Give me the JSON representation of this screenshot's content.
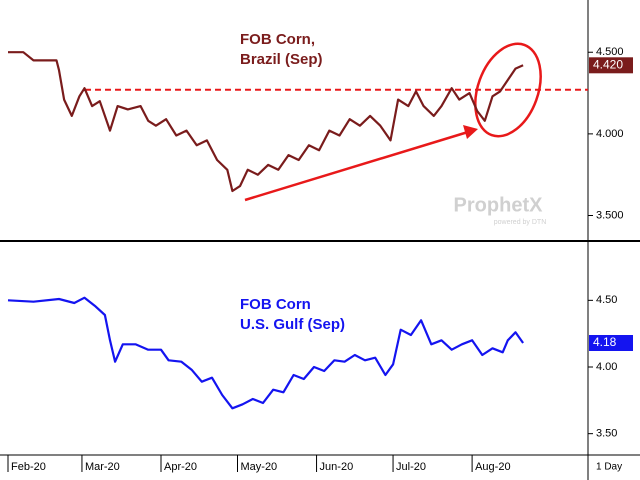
{
  "chart_data": [
    {
      "type": "line",
      "title": [
        "FOB Corn,",
        "Brazil (Sep)"
      ],
      "color": "#7a1c1c",
      "ylim": [
        3.35,
        4.82
      ],
      "yticks": [
        {
          "value": 4.5,
          "label": "4.500"
        },
        {
          "value": 4.0,
          "label": "4.000"
        },
        {
          "value": 3.5,
          "label": "3.500"
        }
      ],
      "reference_line": 4.27,
      "reference_color": "#e8191a",
      "x": [
        0,
        6,
        10,
        19,
        20,
        22,
        25,
        28,
        30,
        33,
        36,
        40,
        43,
        47,
        52,
        55,
        58,
        62,
        66,
        70,
        74,
        78,
        82,
        86,
        88,
        91,
        94,
        98,
        102,
        106,
        110,
        114,
        118,
        122,
        126,
        130,
        134,
        138,
        142,
        146,
        150,
        153,
        157,
        160,
        163,
        167,
        170,
        174,
        177,
        181,
        184,
        187,
        190,
        193,
        196,
        199,
        202
      ],
      "values": [
        4.5,
        4.5,
        4.45,
        4.45,
        4.39,
        4.21,
        4.11,
        4.23,
        4.28,
        4.17,
        4.2,
        4.02,
        4.17,
        4.15,
        4.17,
        4.08,
        4.05,
        4.09,
        3.99,
        4.02,
        3.93,
        3.96,
        3.84,
        3.78,
        3.65,
        3.68,
        3.78,
        3.75,
        3.81,
        3.78,
        3.87,
        3.84,
        3.93,
        3.9,
        4.02,
        3.99,
        4.09,
        4.05,
        4.11,
        4.05,
        3.96,
        4.21,
        4.17,
        4.26,
        4.17,
        4.11,
        4.17,
        4.28,
        4.21,
        4.25,
        4.14,
        4.08,
        4.23,
        4.26,
        4.33,
        4.4,
        4.42
      ],
      "last_label": "4.420"
    },
    {
      "type": "line",
      "title": [
        "FOB Corn",
        "U.S. Gulf (Sep)"
      ],
      "color": "#1414f0",
      "ylim": [
        3.34,
        4.93
      ],
      "yticks": [
        {
          "value": 4.5,
          "label": "4.50"
        },
        {
          "value": 4.0,
          "label": "4.00"
        },
        {
          "value": 3.5,
          "label": "3.50"
        }
      ],
      "x": [
        0,
        10,
        20,
        26,
        30,
        34,
        38,
        40,
        42,
        45,
        50,
        55,
        60,
        63,
        68,
        72,
        76,
        80,
        84,
        88,
        92,
        96,
        100,
        104,
        108,
        112,
        116,
        120,
        124,
        128,
        132,
        136,
        140,
        144,
        148,
        151,
        154,
        158,
        162,
        166,
        170,
        174,
        178,
        182,
        186,
        190,
        194,
        196,
        199,
        202
      ],
      "values": [
        4.5,
        4.49,
        4.51,
        4.48,
        4.52,
        4.46,
        4.39,
        4.2,
        4.04,
        4.17,
        4.17,
        4.13,
        4.13,
        4.05,
        4.04,
        3.98,
        3.89,
        3.92,
        3.79,
        3.69,
        3.72,
        3.76,
        3.73,
        3.83,
        3.81,
        3.94,
        3.91,
        4.0,
        3.97,
        4.05,
        4.04,
        4.09,
        4.05,
        4.07,
        3.94,
        4.02,
        4.28,
        4.24,
        4.35,
        4.17,
        4.2,
        4.13,
        4.17,
        4.2,
        4.09,
        4.14,
        4.11,
        4.2,
        4.26,
        4.18
      ],
      "last_label": "4.18"
    }
  ],
  "x_axis": {
    "xlim": [
      0,
      226
    ],
    "xticks": [
      {
        "value": 0,
        "label": "Feb-20"
      },
      {
        "value": 29,
        "label": "Mar-20"
      },
      {
        "value": 60,
        "label": "Apr-20"
      },
      {
        "value": 90,
        "label": "May-20"
      },
      {
        "value": 121,
        "label": "Jun-20"
      },
      {
        "value": 151,
        "label": "Jul-20"
      },
      {
        "value": 182,
        "label": "Aug-20"
      }
    ],
    "interval": "1 Day"
  },
  "watermark": "ProphetX",
  "watermark_sub": "powered by DTN"
}
